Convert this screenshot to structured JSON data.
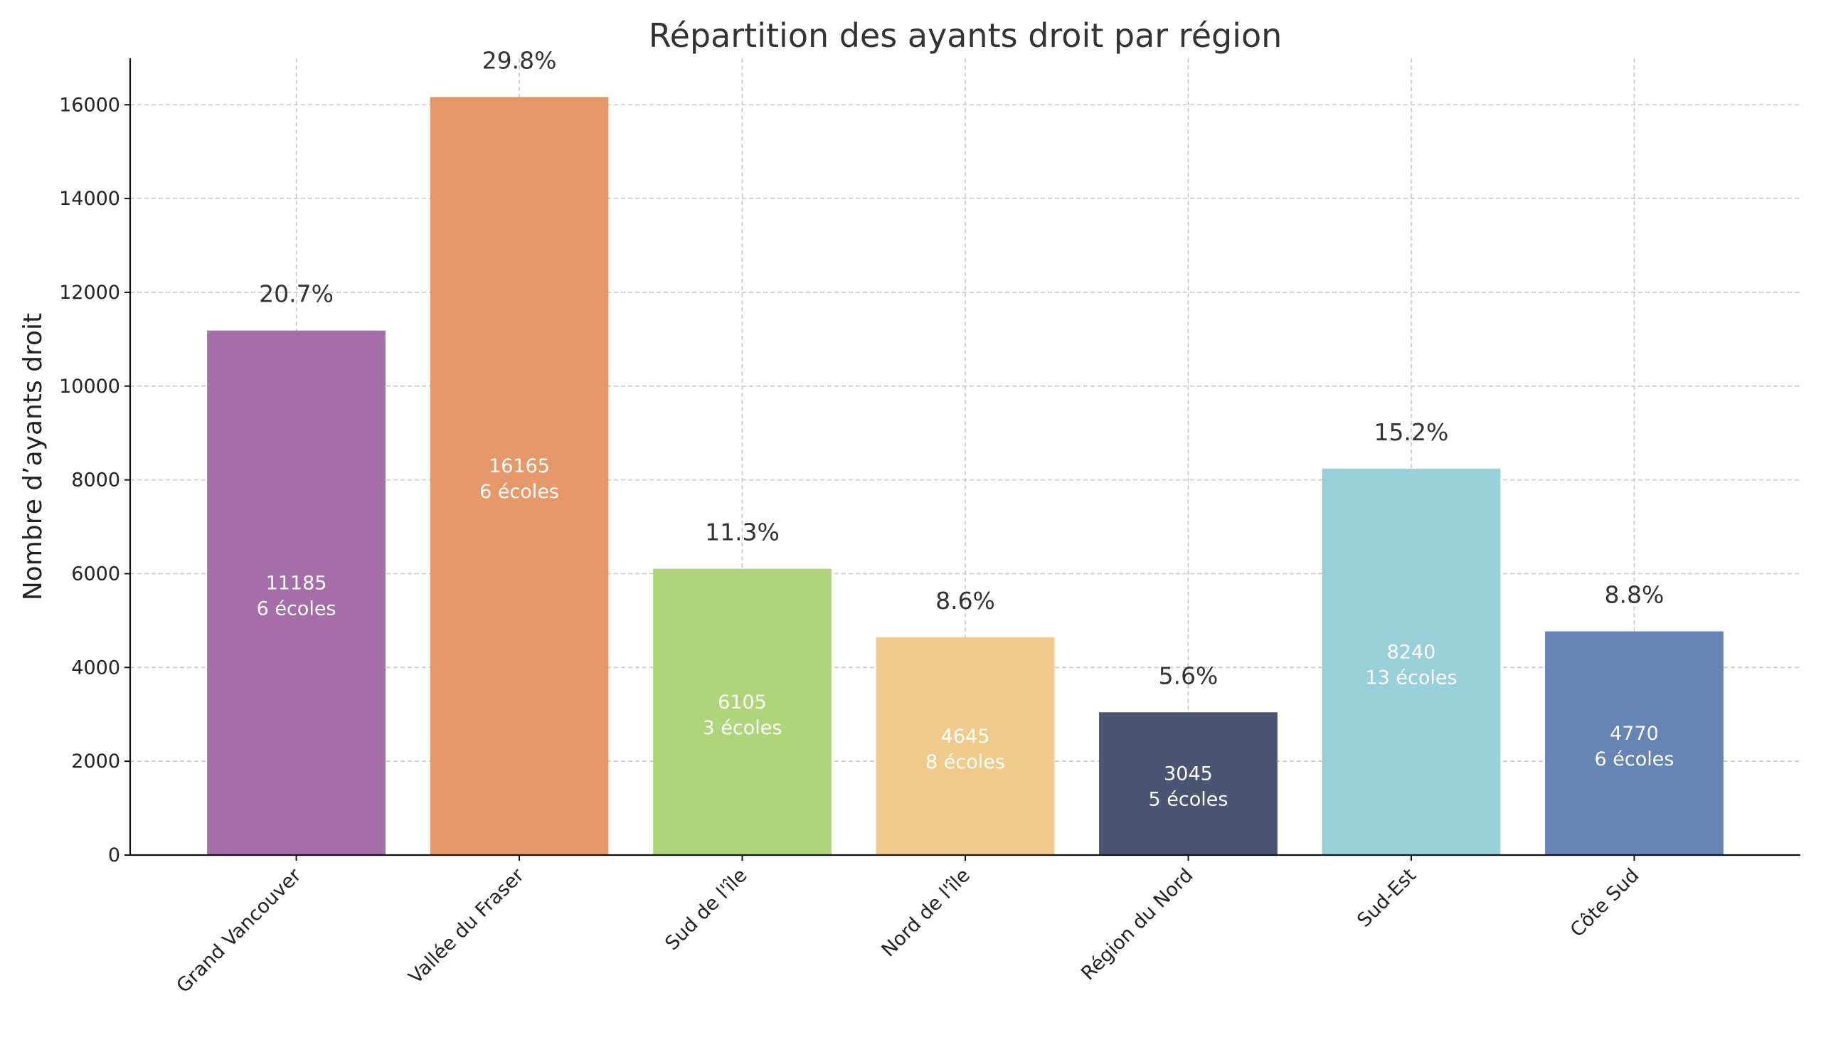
{
  "chart_data": {
    "type": "bar",
    "title": "Répartition des ayants droit par région",
    "xlabel": "",
    "ylabel": "Nombre d’ayants droit",
    "categories": [
      "Grand Vancouver",
      "Vallée du Fraser",
      "Sud de l'île",
      "Nord de l'île",
      "Région du Nord",
      "Sud-Est",
      "Côte Sud"
    ],
    "values": [
      11185,
      16165,
      6105,
      4645,
      3045,
      8240,
      4770
    ],
    "percent_labels": [
      "20.7%",
      "29.8%",
      "11.3%",
      "8.6%",
      "5.6%",
      "15.2%",
      "8.8%"
    ],
    "value_labels": [
      "11185",
      "16165",
      "6105",
      "4645",
      "3045",
      "8240",
      "4770"
    ],
    "school_labels": [
      "6 écoles",
      "6 écoles",
      "3 écoles",
      "8 écoles",
      "5 écoles",
      "13 écoles",
      "6 écoles"
    ],
    "colors": [
      "#A56EA8",
      "#E6986A",
      "#B0D47A",
      "#F0CA8A",
      "#4A5573",
      "#97D0D8",
      "#6685B4"
    ],
    "yticks": [
      0,
      2000,
      4000,
      6000,
      8000,
      10000,
      12000,
      14000,
      16000
    ],
    "ytick_labels": [
      "0",
      "2000",
      "4000",
      "6000",
      "8000",
      "10000",
      "12000",
      "14000",
      "16000"
    ],
    "ylim": [
      0,
      16990
    ],
    "grid": true
  }
}
